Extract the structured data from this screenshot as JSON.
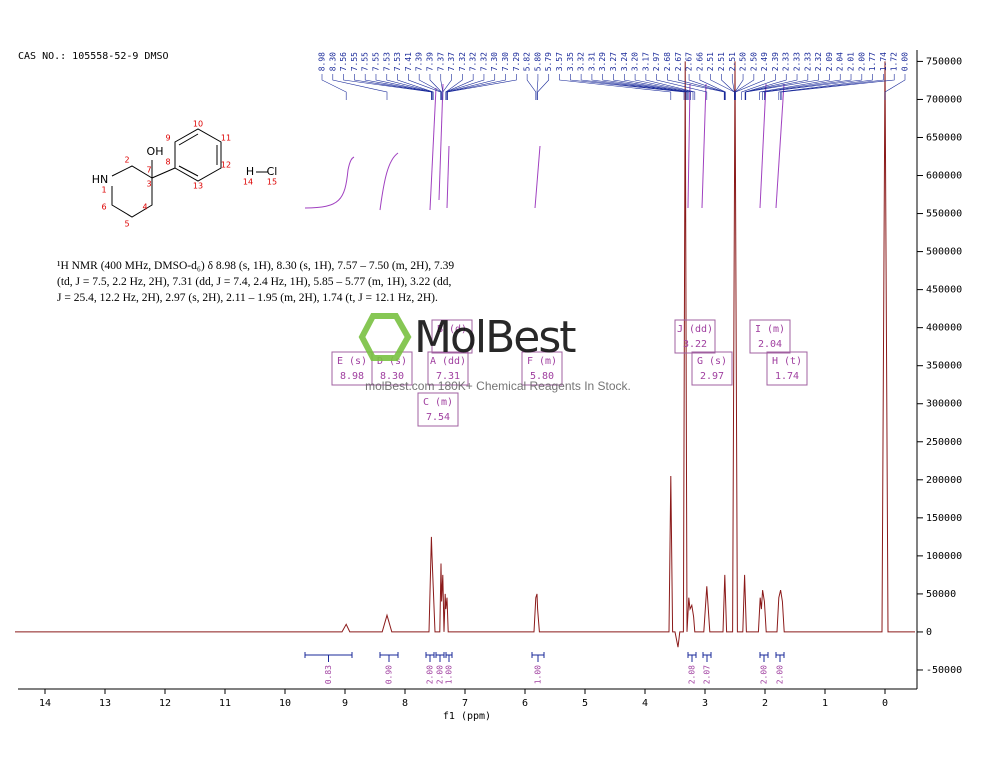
{
  "header": {
    "cas": "CAS NO.: 105558-52-9 DMSO"
  },
  "structure": {
    "labels": [
      "OH",
      "HN",
      "H",
      "Cl",
      "1",
      "2",
      "3",
      "4",
      "5",
      "6",
      "7",
      "8",
      "9",
      "10",
      "11",
      "12",
      "13",
      "14",
      "15"
    ]
  },
  "description": "¹H NMR (400 MHz, DMSO-d₆) δ 8.98 (s, 1H), 8.30 (s, 1H), 7.57 – 7.50 (m, 2H), 7.39 (td, J = 7.5, 2.2 Hz, 2H), 7.31 (dd, J = 7.4, 2.4 Hz, 1H), 5.85 – 5.77 (m, 1H), 3.22 (dd, J = 25.4, 12.2 Hz, 2H), 2.97 (s, 2H), 2.11 – 1.95 (m, 2H), 1.74 (t, J = 12.1 Hz, 2H).",
  "watermark": {
    "brand": "MolBest",
    "tagline": "molBest.com 180K+ Chemical Reagents In Stock."
  },
  "chart_data": {
    "type": "line",
    "xlabel": "f1 (ppm)",
    "color": "#8b1a1a",
    "x": [
      14.5,
      9.05,
      8.98,
      8.92,
      8.38,
      8.3,
      8.22,
      7.6,
      7.56,
      7.55,
      7.53,
      7.5,
      7.42,
      7.4,
      7.39,
      7.37,
      7.35,
      7.33,
      7.32,
      7.3,
      7.28,
      5.85,
      5.82,
      5.8,
      5.79,
      5.76,
      3.6,
      3.57,
      3.54,
      3.5,
      3.45,
      3.42,
      3.36,
      3.33,
      3.3,
      3.27,
      3.25,
      3.22,
      3.19,
      3.17,
      3.02,
      2.97,
      2.92,
      2.7,
      2.67,
      2.64,
      2.54,
      2.5,
      2.46,
      2.37,
      2.34,
      2.31,
      2.11,
      2.08,
      2.06,
      2.04,
      2.01,
      1.98,
      1.8,
      1.77,
      1.74,
      1.71,
      1.68,
      0.05,
      0.0,
      -0.05,
      -0.5
    ],
    "values": [
      0,
      0,
      10000,
      0,
      0,
      22000,
      0,
      0,
      125000,
      100000,
      60000,
      0,
      0,
      90000,
      40000,
      75000,
      0,
      50000,
      30000,
      45000,
      0,
      0,
      45000,
      50000,
      30000,
      0,
      0,
      205000,
      0,
      0,
      -20000,
      0,
      0,
      750000,
      0,
      45000,
      30000,
      35000,
      20000,
      0,
      0,
      60000,
      0,
      0,
      75000,
      0,
      0,
      750000,
      0,
      0,
      75000,
      0,
      0,
      45000,
      30000,
      55000,
      40000,
      0,
      0,
      45000,
      55000,
      40000,
      0,
      0,
      750000,
      0,
      0
    ],
    "xlim": [
      14.5,
      -0.5
    ],
    "xticks": [
      14,
      13,
      12,
      11,
      10,
      9,
      8,
      7,
      6,
      5,
      4,
      3,
      2,
      1,
      0
    ],
    "ylim": [
      -75000,
      765000
    ],
    "yticks": [
      -50000,
      0,
      50000,
      100000,
      150000,
      200000,
      250000,
      300000,
      350000,
      400000,
      450000,
      500000,
      550000,
      600000,
      650000,
      700000,
      750000
    ],
    "peak_labels": [
      "8.98",
      "8.30",
      "7.56",
      "7.55",
      "7.55",
      "7.55",
      "7.53",
      "7.53",
      "7.41",
      "7.39",
      "7.39",
      "7.37",
      "7.37",
      "7.32",
      "7.32",
      "7.32",
      "7.30",
      "7.30",
      "7.29",
      "5.82",
      "5.80",
      "5.79",
      "3.57",
      "3.35",
      "3.32",
      "3.31",
      "3.29",
      "3.27",
      "3.24",
      "3.20",
      "3.17",
      "2.97",
      "2.68",
      "2.67",
      "2.67",
      "2.66",
      "2.51",
      "2.51",
      "2.51",
      "2.50",
      "2.50",
      "2.49",
      "2.39",
      "2.33",
      "2.33",
      "2.33",
      "2.32",
      "2.09",
      "2.04",
      "2.01",
      "2.00",
      "1.77",
      "1.74",
      "1.72",
      "0.00"
    ],
    "multiplets": [
      {
        "label": "E (s)",
        "shift": "8.98"
      },
      {
        "label": "D (s)",
        "shift": "8.30"
      },
      {
        "label": "B (d)"
      },
      {
        "label": "A (dd)",
        "shift": "7.31"
      },
      {
        "label": "C (m)",
        "shift": "7.54"
      },
      {
        "label": "F (m)",
        "shift": "5.80"
      },
      {
        "label": "J (dd)",
        "shift": "3.22"
      },
      {
        "label": "G (s)",
        "shift": "2.97"
      },
      {
        "label": "I (m)",
        "shift": "2.04"
      },
      {
        "label": "H (t)",
        "shift": "1.74"
      }
    ],
    "integrals": [
      "0.83",
      "0.90",
      "2.00",
      "2.00",
      "1.00",
      "1.00",
      "2.08",
      "2.07",
      "2.00",
      "2.00"
    ]
  }
}
